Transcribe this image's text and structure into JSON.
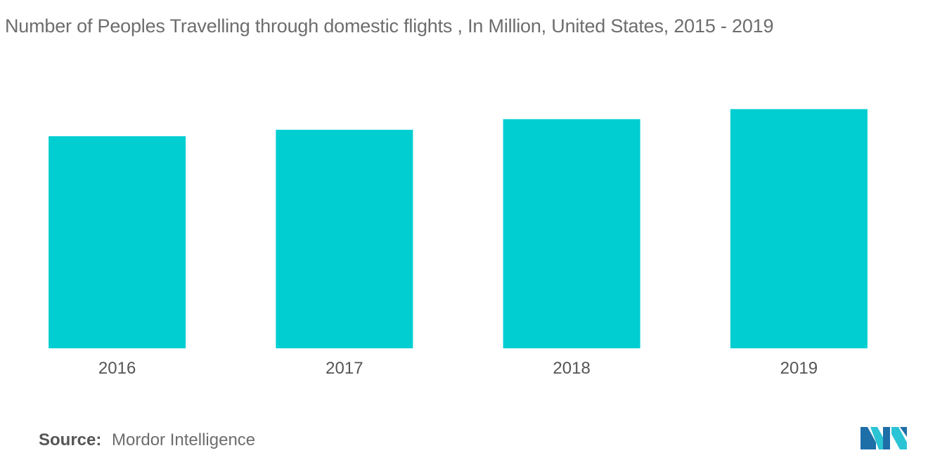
{
  "title": "Number of Peoples Travelling through domestic flights , In Million, United States, 2015 - 2019",
  "source": {
    "label": "Source:",
    "value": "Mordor Intelligence"
  },
  "logo": {
    "name": "mordor-intelligence-logo",
    "colors": [
      "#1e6fa8",
      "#2bc4d4"
    ]
  },
  "colors": {
    "bar": "#00ced1",
    "title": "#6d6d6d",
    "tick_label": "#555555"
  },
  "chart_data": {
    "type": "bar",
    "title": "Number of Peoples Travelling through domestic flights , In Million, United States, 2015 - 2019",
    "categories": [
      "2016",
      "2017",
      "2018",
      "2019"
    ],
    "values": [
      719,
      741,
      777,
      811
    ],
    "xlabel": "",
    "ylabel": "",
    "ylim": [
      0,
      1000
    ],
    "grid": false,
    "legend": "none"
  }
}
